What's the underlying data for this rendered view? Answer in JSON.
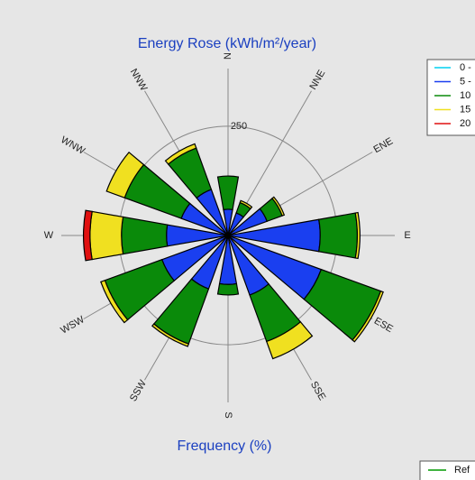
{
  "chart_data": [
    {
      "type": "rose",
      "title": "Energy Rose (kWh/m²/year)",
      "directions": [
        "N",
        "NNE",
        "ENE",
        "E",
        "ESE",
        "SSE",
        "S",
        "SSW",
        "WSW",
        "W",
        "WNW",
        "NNW"
      ],
      "series": [
        {
          "name": "0 -",
          "color": "#00d0f0",
          "values": [
            0,
            0,
            0,
            0,
            0,
            0,
            0,
            0,
            0,
            0,
            0,
            0
          ]
        },
        {
          "name": "5 -",
          "color": "#1a3ff0",
          "values": [
            60,
            55,
            95,
            211,
            227,
            145,
            112,
            130,
            161,
            141,
            114,
            112
          ]
        },
        {
          "name": "10",
          "color": "#0a8a0a",
          "values": [
            76,
            25,
            37,
            85,
            145,
            113,
            24,
            134,
            139,
            103,
            138,
            101
          ]
        },
        {
          "name": "15",
          "color": "#f0e020",
          "values": [
            0,
            5,
            5,
            6,
            6,
            42,
            0,
            6,
            10,
            72,
            44,
            10
          ]
        },
        {
          "name": "20",
          "color": "#e01010",
          "values": [
            0,
            0,
            0,
            0,
            0,
            0,
            0,
            0,
            0,
            15,
            0,
            0
          ]
        }
      ],
      "rlim": [
        0,
        390
      ],
      "rticks": [
        250
      ]
    },
    {
      "type": "rose",
      "title": "Frequency (%)",
      "series": [
        {
          "name": "Ref",
          "color": "#009a00"
        }
      ]
    }
  ]
}
